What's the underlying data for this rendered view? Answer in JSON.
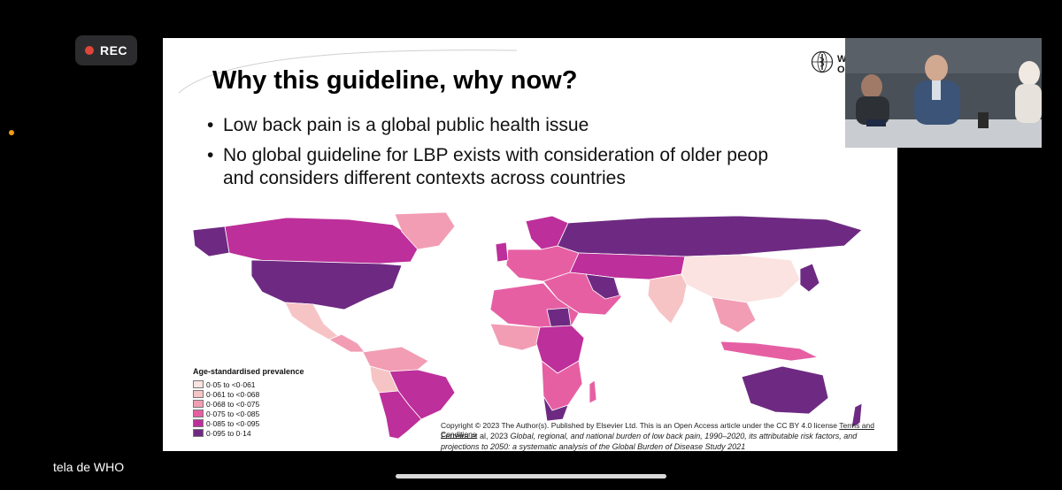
{
  "recording": {
    "label": "REC",
    "dot_color": "#e0453a"
  },
  "slide": {
    "title": "Why this guideline, why now?",
    "org_text": "W\nOr",
    "bullets": [
      {
        "text": "Low back pain is a global public health issue"
      },
      {
        "text": "No global guideline for LBP exists with consideration of older peop\nand considers different contexts across countries"
      }
    ],
    "legend": {
      "title": "Age-standardised prevalence",
      "items": [
        {
          "label": "0·05 to <0·061",
          "color": "#fbe3e1"
        },
        {
          "label": "0·061 to <0·068",
          "color": "#f7c4c6"
        },
        {
          "label": "0·068 to <0·075",
          "color": "#f29db4"
        },
        {
          "label": "0·075 to <0·085",
          "color": "#e65fa3"
        },
        {
          "label": "0·085 to <0·095",
          "color": "#bd2f9a"
        },
        {
          "label": "0·095 to 0·14",
          "color": "#6e2a82"
        }
      ]
    },
    "copyright": "Copyright © 2023 The Author(s). Published by Elsevier Ltd. This is an Open Access article under the CC BY 4.0 license",
    "terms_link": "Terms and Conditions",
    "citation_prefix": "Ferreira et al, 2023 ",
    "citation_title": "Global, regional, and national burden of low back pain, 1990–2020, its attributable risk factors, and projections to 2050: a systematic analysis of the Global Burden of Disease Study 2021"
  },
  "video": {
    "badge": ""
  },
  "screen_label": "tela de WHO"
}
